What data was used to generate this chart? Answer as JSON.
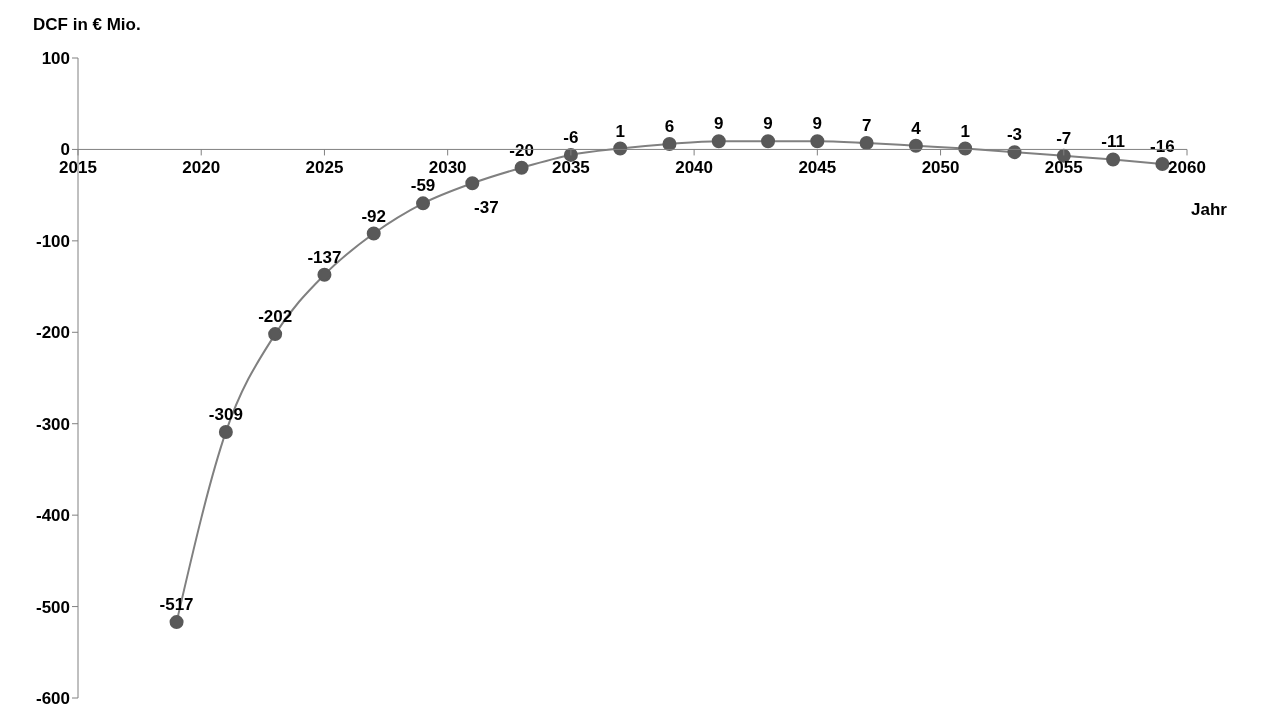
{
  "chart_data": {
    "type": "line",
    "ylabel": "DCF in € Mio.",
    "xlabel": "Jahr",
    "x": [
      2019,
      2021,
      2023,
      2025,
      2027,
      2029,
      2031,
      2033,
      2035,
      2037,
      2039,
      2041,
      2043,
      2045,
      2047,
      2049,
      2051,
      2053,
      2055,
      2057,
      2059
    ],
    "series": [
      {
        "color": "#595959",
        "values": [
          -517,
          -309,
          -202,
          -137,
          -92,
          -59,
          -37,
          -20,
          -6,
          1,
          6,
          9,
          9,
          9,
          7,
          4,
          1,
          -3,
          -7,
          -11,
          -16
        ]
      }
    ],
    "xlim": [
      2015,
      2060
    ],
    "xticks": [
      2015,
      2020,
      2025,
      2030,
      2035,
      2040,
      2045,
      2050,
      2055,
      2060
    ],
    "ylim": [
      -600,
      100
    ],
    "yticks": [
      -600,
      -500,
      -400,
      -300,
      -200,
      -100,
      0,
      100
    ],
    "grid": false,
    "legend": false,
    "marker": "circle",
    "line_style": "solid",
    "data_labels": true
  }
}
